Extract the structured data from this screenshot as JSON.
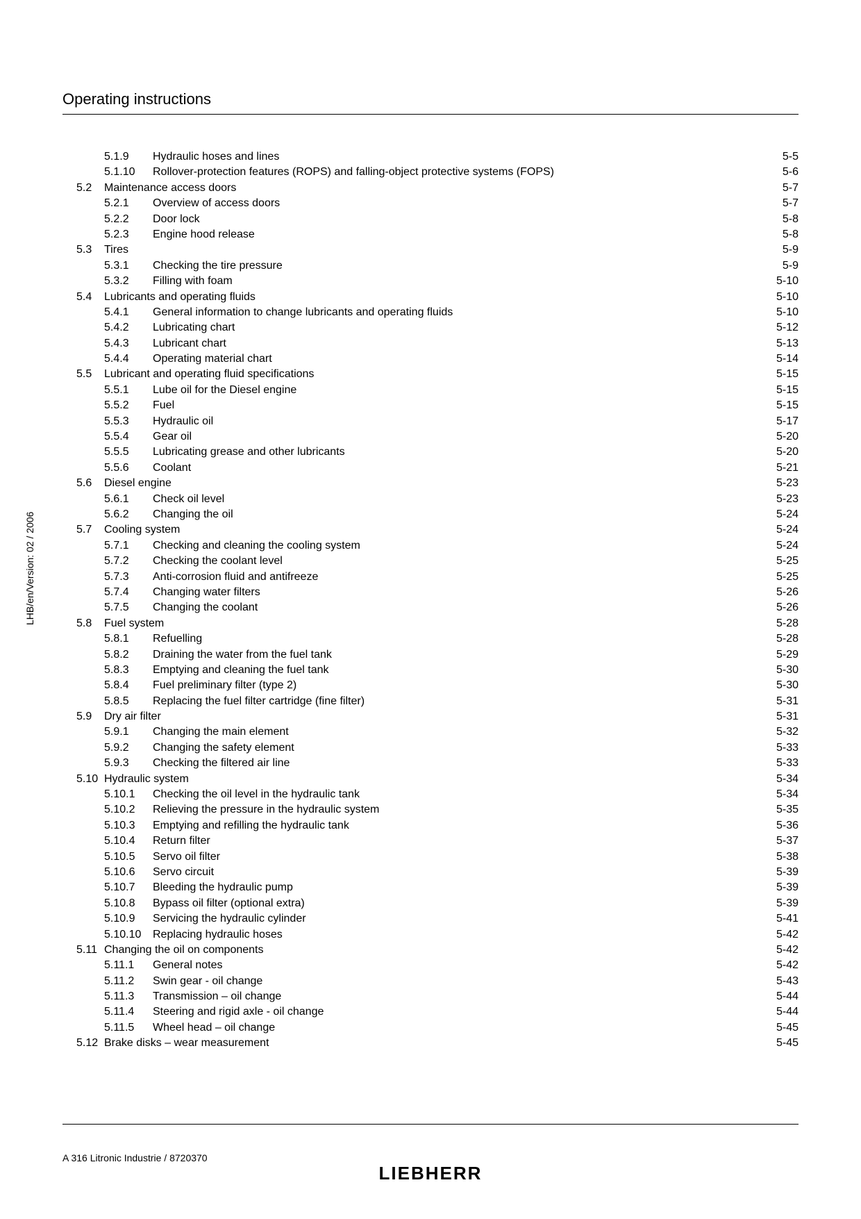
{
  "header": "Operating instructions",
  "sidebar": "LHB/en/Version: 02 / 2006",
  "footer_left": "A 316 Litronic Industrie / 8720370",
  "brand": "LIEBHERR",
  "toc": [
    {
      "sec": "",
      "sub": "5.1.9",
      "title": "Hydraulic hoses and lines",
      "page": "5-5"
    },
    {
      "sec": "",
      "sub": "5.1.10",
      "title": "Rollover-protection features (ROPS) and falling-object protective systems (FOPS)",
      "page": "5-6"
    },
    {
      "sec": "5.2",
      "sub": "",
      "title": "Maintenance access doors",
      "page": "5-7"
    },
    {
      "sec": "",
      "sub": "5.2.1",
      "title": "Overview of access doors",
      "page": "5-7"
    },
    {
      "sec": "",
      "sub": "5.2.2",
      "title": "Door lock",
      "page": "5-8"
    },
    {
      "sec": "",
      "sub": "5.2.3",
      "title": "Engine hood release",
      "page": "5-8"
    },
    {
      "sec": "5.3",
      "sub": "",
      "title": "Tires",
      "page": "5-9"
    },
    {
      "sec": "",
      "sub": "5.3.1",
      "title": "Checking the tire pressure",
      "page": "5-9"
    },
    {
      "sec": "",
      "sub": "5.3.2",
      "title": "Filling with foam",
      "page": "5-10"
    },
    {
      "sec": "5.4",
      "sub": "",
      "title": "Lubricants and operating fluids",
      "page": "5-10"
    },
    {
      "sec": "",
      "sub": "5.4.1",
      "title": "General information to change lubricants and operating fluids",
      "page": "5-10"
    },
    {
      "sec": "",
      "sub": "5.4.2",
      "title": "Lubricating chart",
      "page": "5-12"
    },
    {
      "sec": "",
      "sub": "5.4.3",
      "title": "Lubricant chart",
      "page": "5-13"
    },
    {
      "sec": "",
      "sub": "5.4.4",
      "title": "Operating material chart",
      "page": "5-14"
    },
    {
      "sec": "5.5",
      "sub": "",
      "title": "Lubricant and operating fluid specifications",
      "page": "5-15"
    },
    {
      "sec": "",
      "sub": "5.5.1",
      "title": "Lube oil for the Diesel engine",
      "page": "5-15"
    },
    {
      "sec": "",
      "sub": "5.5.2",
      "title": "Fuel",
      "page": "5-15"
    },
    {
      "sec": "",
      "sub": "5.5.3",
      "title": "Hydraulic oil",
      "page": "5-17"
    },
    {
      "sec": "",
      "sub": "5.5.4",
      "title": "Gear oil",
      "page": "5-20"
    },
    {
      "sec": "",
      "sub": "5.5.5",
      "title": "Lubricating grease and other lubricants",
      "page": "5-20"
    },
    {
      "sec": "",
      "sub": "5.5.6",
      "title": "Coolant",
      "page": "5-21"
    },
    {
      "sec": "5.6",
      "sub": "",
      "title": "Diesel engine",
      "page": "5-23"
    },
    {
      "sec": "",
      "sub": "5.6.1",
      "title": "Check oil level",
      "page": "5-23"
    },
    {
      "sec": "",
      "sub": "5.6.2",
      "title": "Changing the oil",
      "page": "5-24"
    },
    {
      "sec": "5.7",
      "sub": "",
      "title": "Cooling system",
      "page": "5-24"
    },
    {
      "sec": "",
      "sub": "5.7.1",
      "title": "Checking and cleaning the cooling system",
      "page": "5-24"
    },
    {
      "sec": "",
      "sub": "5.7.2",
      "title": "Checking the coolant level",
      "page": "5-25"
    },
    {
      "sec": "",
      "sub": "5.7.3",
      "title": "Anti-corrosion fluid and antifreeze",
      "page": "5-25"
    },
    {
      "sec": "",
      "sub": "5.7.4",
      "title": "Changing water filters",
      "page": "5-26"
    },
    {
      "sec": "",
      "sub": "5.7.5",
      "title": "Changing the coolant",
      "page": "5-26"
    },
    {
      "sec": "5.8",
      "sub": "",
      "title": "Fuel system",
      "page": "5-28"
    },
    {
      "sec": "",
      "sub": "5.8.1",
      "title": "Refuelling",
      "page": "5-28"
    },
    {
      "sec": "",
      "sub": "5.8.2",
      "title": "Draining the water from the fuel tank",
      "page": "5-29"
    },
    {
      "sec": "",
      "sub": "5.8.3",
      "title": "Emptying and cleaning the fuel tank",
      "page": "5-30"
    },
    {
      "sec": "",
      "sub": "5.8.4",
      "title": "Fuel preliminary filter (type 2)",
      "page": "5-30"
    },
    {
      "sec": "",
      "sub": "5.8.5",
      "title": "Replacing the fuel filter cartridge (fine filter)",
      "page": "5-31"
    },
    {
      "sec": "5.9",
      "sub": "",
      "title": "Dry air filter",
      "page": "5-31"
    },
    {
      "sec": "",
      "sub": "5.9.1",
      "title": "Changing the main element",
      "page": "5-32"
    },
    {
      "sec": "",
      "sub": "5.9.2",
      "title": "Changing the safety element",
      "page": "5-33"
    },
    {
      "sec": "",
      "sub": "5.9.3",
      "title": "Checking the filtered air line",
      "page": "5-33"
    },
    {
      "sec": "5.10",
      "sub": "",
      "title": "Hydraulic system",
      "page": "5-34"
    },
    {
      "sec": "",
      "sub": "5.10.1",
      "title": "Checking the oil level in the hydraulic tank",
      "page": "5-34"
    },
    {
      "sec": "",
      "sub": "5.10.2",
      "title": "Relieving the pressure in the hydraulic system",
      "page": "5-35"
    },
    {
      "sec": "",
      "sub": "5.10.3",
      "title": "Emptying and refilling the hydraulic tank",
      "page": "5-36"
    },
    {
      "sec": "",
      "sub": "5.10.4",
      "title": "Return filter",
      "page": "5-37"
    },
    {
      "sec": "",
      "sub": "5.10.5",
      "title": "Servo oil filter",
      "page": "5-38"
    },
    {
      "sec": "",
      "sub": "5.10.6",
      "title": "Servo circuit",
      "page": "5-39"
    },
    {
      "sec": "",
      "sub": "5.10.7",
      "title": "Bleeding the hydraulic pump",
      "page": "5-39"
    },
    {
      "sec": "",
      "sub": "5.10.8",
      "title": "Bypass oil filter (optional extra)",
      "page": "5-39"
    },
    {
      "sec": "",
      "sub": "5.10.9",
      "title": "Servicing the hydraulic cylinder",
      "page": "5-41"
    },
    {
      "sec": "",
      "sub": "5.10.10",
      "title": "Replacing hydraulic hoses",
      "page": "5-42"
    },
    {
      "sec": "5.11",
      "sub": "",
      "title": "Changing the oil on components",
      "page": "5-42"
    },
    {
      "sec": "",
      "sub": "5.11.1",
      "title": "General notes",
      "page": "5-42"
    },
    {
      "sec": "",
      "sub": "5.11.2",
      "title": "Swin gear - oil change",
      "page": "5-43"
    },
    {
      "sec": "",
      "sub": "5.11.3",
      "title": "Transmission – oil change",
      "page": "5-44"
    },
    {
      "sec": "",
      "sub": "5.11.4",
      "title": "Steering and rigid axle - oil change",
      "page": "5-44"
    },
    {
      "sec": "",
      "sub": "5.11.5",
      "title": "Wheel head – oil change",
      "page": "5-45"
    },
    {
      "sec": "5.12",
      "sub": "",
      "title": "Brake disks – wear measurement",
      "page": "5-45"
    }
  ]
}
